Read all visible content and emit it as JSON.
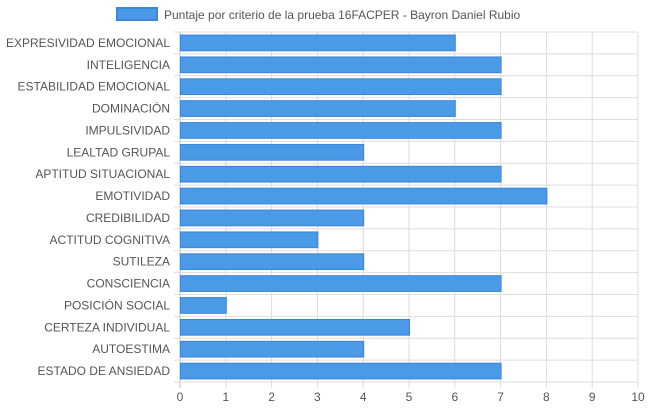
{
  "chart_data": {
    "type": "bar",
    "orientation": "horizontal",
    "legend_position": "top-center",
    "grid": true,
    "xlim": [
      0,
      10
    ],
    "x_ticks": [
      "0",
      "1",
      "2",
      "3",
      "4",
      "5",
      "6",
      "7",
      "8",
      "9",
      "10"
    ],
    "categories": [
      "EXPRESIVIDAD EMOCIONAL",
      "INTELIGENCIA",
      "ESTABILIDAD EMOCIONAL",
      "DOMINACIÓN",
      "IMPULSIVIDAD",
      "LEALTAD GRUPAL",
      "APTITUD SITUACIONAL",
      "EMOTIVIDAD",
      "CREDIBILIDAD",
      "ACTITUD COGNITIVA",
      "SUTILEZA",
      "CONSCIENCIA",
      "POSICIÓN SOCIAL",
      "CERTEZA INDIVIDUAL",
      "AUTOESTIMA",
      "ESTADO DE ANSIEDAD"
    ],
    "series": [
      {
        "name": "Puntaje por criterio de la prueba 16FACPER - Bayron Daniel Rubio",
        "color": "#4a9ae8",
        "border_color": "#3d85d6",
        "values": [
          6,
          7,
          7,
          6,
          7,
          4,
          7,
          8,
          4,
          3,
          4,
          7,
          1,
          5,
          4,
          7
        ]
      }
    ],
    "grid_color": "#dddddd",
    "zero_line_color": "#bbbbbb"
  }
}
